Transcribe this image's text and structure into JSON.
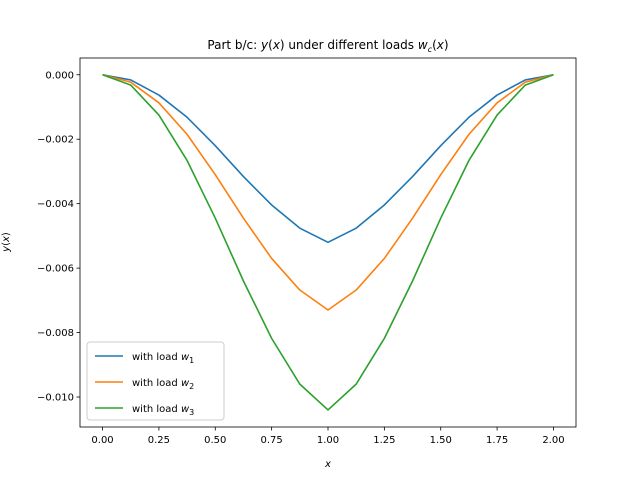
{
  "chart_data": {
    "type": "line",
    "title": "Part b/c: y(x) under different loads w_c(x)",
    "xlabel": "x",
    "ylabel": "y(x)",
    "xlim": [
      -0.1,
      2.1
    ],
    "ylim": [
      -0.01093,
      0.00052
    ],
    "xticks": [
      0.0,
      0.25,
      0.5,
      0.75,
      1.0,
      1.25,
      1.5,
      1.75,
      2.0
    ],
    "xtick_labels": [
      "0.00",
      "0.25",
      "0.50",
      "0.75",
      "1.00",
      "1.25",
      "1.50",
      "1.75",
      "2.00"
    ],
    "yticks": [
      0.0,
      -0.002,
      -0.004,
      -0.006,
      -0.008,
      -0.01
    ],
    "ytick_labels": [
      "0.000",
      "−0.002",
      "−0.004",
      "−0.006",
      "−0.008",
      "−0.010"
    ],
    "grid": false,
    "legend_position": "lower-left",
    "series": [
      {
        "name": "with load w_1",
        "color": "#1f77b4",
        "x": [
          0.0,
          0.125,
          0.25,
          0.375,
          0.5,
          0.625,
          0.75,
          0.875,
          1.0,
          1.125,
          1.25,
          1.375,
          1.5,
          1.625,
          1.75,
          1.875,
          2.0
        ],
        "y": [
          0.0,
          -0.00016,
          -0.00063,
          -0.00132,
          -0.0022,
          -0.00316,
          -0.00404,
          -0.00476,
          -0.0052,
          -0.00476,
          -0.00404,
          -0.00316,
          -0.0022,
          -0.00132,
          -0.00063,
          -0.00016,
          0.0
        ]
      },
      {
        "name": "with load w_2",
        "color": "#ff7f0e",
        "x": [
          0.0,
          0.125,
          0.25,
          0.375,
          0.5,
          0.625,
          0.75,
          0.875,
          1.0,
          1.125,
          1.25,
          1.375,
          1.5,
          1.625,
          1.75,
          1.875,
          2.0
        ],
        "y": [
          0.0,
          -0.00023,
          -0.00087,
          -0.00185,
          -0.0031,
          -0.00445,
          -0.0057,
          -0.00668,
          -0.0073,
          -0.00668,
          -0.0057,
          -0.00445,
          -0.0031,
          -0.00185,
          -0.00087,
          -0.00023,
          0.0
        ]
      },
      {
        "name": "with load w_3",
        "color": "#2ca02c",
        "x": [
          0.0,
          0.125,
          0.25,
          0.375,
          0.5,
          0.625,
          0.75,
          0.875,
          1.0,
          1.125,
          1.25,
          1.375,
          1.5,
          1.625,
          1.75,
          1.875,
          2.0
        ],
        "y": [
          0.0,
          -0.00032,
          -0.00125,
          -0.00266,
          -0.00445,
          -0.0064,
          -0.00818,
          -0.0096,
          -0.0104,
          -0.0096,
          -0.00818,
          -0.0064,
          -0.00445,
          -0.00266,
          -0.00125,
          -0.00032,
          0.0
        ]
      }
    ]
  }
}
